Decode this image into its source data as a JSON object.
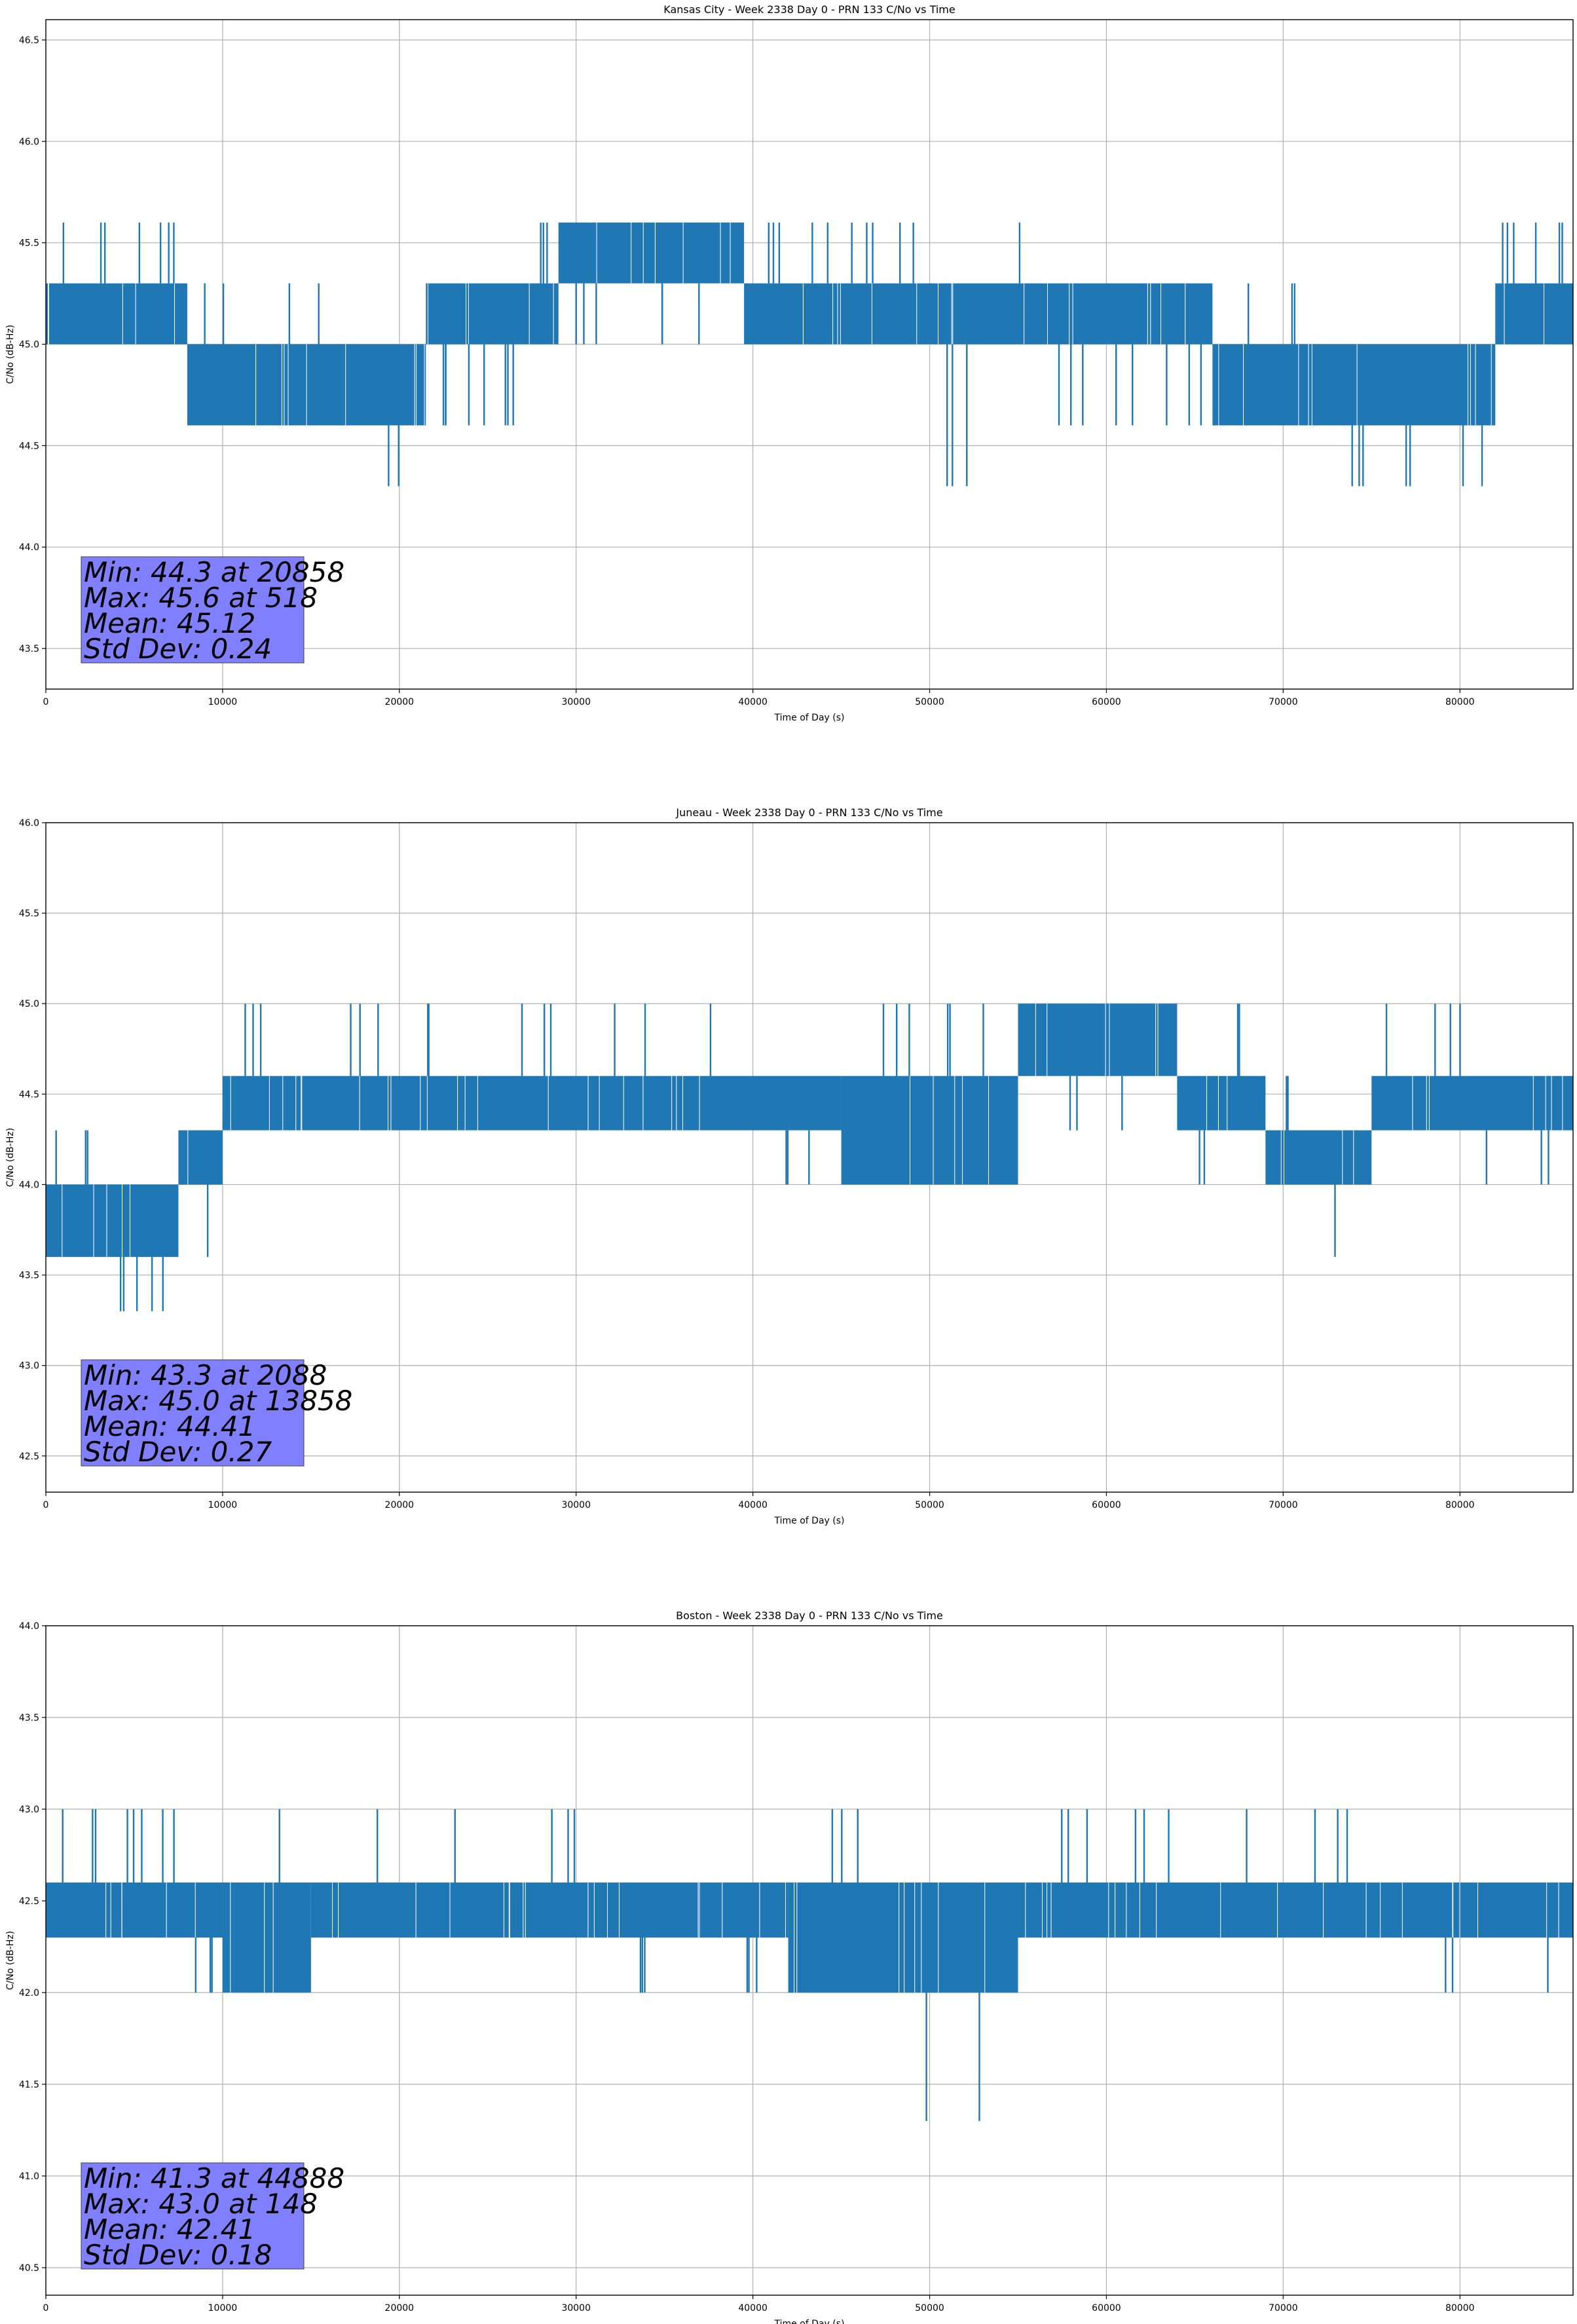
{
  "colors": {
    "series": "#1f77b4",
    "grid": "#b0b0b0",
    "stats_box": "#8080ff",
    "stats_text": "#000000",
    "axes": "#000000",
    "background": "#ffffff"
  },
  "chart_data": [
    {
      "type": "line",
      "title": "Kansas City - Week 2338 Day 0 - PRN 133 C/No vs Time",
      "xlabel": "Time of Day (s)",
      "ylabel": "C/No (dB-Hz)",
      "xlim": [
        0,
        86400
      ],
      "ylim": [
        43.3,
        46.6
      ],
      "xticks": [
        0,
        10000,
        20000,
        30000,
        40000,
        50000,
        60000,
        70000,
        80000
      ],
      "yticks": [
        43.5,
        44.0,
        44.5,
        45.0,
        45.5,
        46.0,
        46.5
      ],
      "ytick_labels": [
        "43.5",
        "44.0",
        "44.5",
        "45.0",
        "45.5",
        "46.0",
        "46.5"
      ],
      "grid": true,
      "stats_lines": [
        "Min: 44.3 at 20858",
        "Max: 45.6 at 518",
        "Mean: 45.12",
        "Std Dev: 0.24"
      ],
      "segments": [
        {
          "x": [
            0,
            8000
          ],
          "levels": [
            45.0,
            45.3
          ],
          "spikes": [
            45.6,
            45.6,
            45.6,
            45.6
          ]
        },
        {
          "x": [
            8000,
            21500
          ],
          "levels": [
            44.6,
            45.0
          ],
          "spikes": [
            45.3,
            45.3,
            45.3,
            44.3
          ]
        },
        {
          "x": [
            21500,
            29000
          ],
          "levels": [
            45.0,
            45.3
          ],
          "spikes": [
            44.6,
            44.6,
            44.6,
            45.6
          ]
        },
        {
          "x": [
            29000,
            39500
          ],
          "levels": [
            45.3,
            45.6
          ],
          "spikes": [
            45.0,
            45.0,
            45.0
          ]
        },
        {
          "x": [
            39500,
            53000
          ],
          "levels": [
            45.0,
            45.3
          ],
          "spikes": [
            45.6,
            45.6,
            45.6,
            45.6,
            44.3
          ]
        },
        {
          "x": [
            53000,
            66000
          ],
          "levels": [
            45.0,
            45.3
          ],
          "spikes": [
            45.6,
            44.6,
            44.6,
            44.6
          ]
        },
        {
          "x": [
            66000,
            82000
          ],
          "levels": [
            44.6,
            45.0
          ],
          "spikes": [
            45.3,
            45.3,
            44.3,
            44.3,
            44.3
          ]
        },
        {
          "x": [
            82000,
            86400
          ],
          "levels": [
            45.0,
            45.3
          ],
          "spikes": [
            45.6,
            45.6,
            45.6
          ]
        }
      ]
    },
    {
      "type": "line",
      "title": "Juneau - Week 2338 Day 0 - PRN 133 C/No vs Time",
      "xlabel": "Time of Day (s)",
      "ylabel": "C/No (dB-Hz)",
      "xlim": [
        0,
        86400
      ],
      "ylim": [
        42.3,
        46.0
      ],
      "xticks": [
        0,
        10000,
        20000,
        30000,
        40000,
        50000,
        60000,
        70000,
        80000
      ],
      "yticks": [
        42.5,
        43.0,
        43.5,
        44.0,
        44.5,
        45.0,
        45.5,
        46.0
      ],
      "ytick_labels": [
        "42.5",
        "43.0",
        "43.5",
        "44.0",
        "44.5",
        "45.0",
        "45.5",
        "46.0"
      ],
      "grid": true,
      "stats_lines": [
        "Min: 43.3 at 2088",
        "Max: 45.0 at 13858",
        "Mean: 44.41",
        "Std Dev: 0.27"
      ],
      "segments": [
        {
          "x": [
            0,
            7500
          ],
          "levels": [
            43.6,
            44.0
          ],
          "spikes": [
            44.3,
            44.3,
            43.3,
            43.3
          ]
        },
        {
          "x": [
            7500,
            10000
          ],
          "levels": [
            44.0,
            44.3
          ],
          "spikes": [
            43.6
          ]
        },
        {
          "x": [
            10000,
            45000
          ],
          "levels": [
            44.3,
            44.6
          ],
          "spikes": [
            45.0,
            45.0,
            45.0,
            45.0,
            45.0,
            45.0,
            44.0
          ]
        },
        {
          "x": [
            45000,
            55000
          ],
          "levels": [
            44.0,
            44.6
          ],
          "spikes": [
            45.0,
            45.0
          ]
        },
        {
          "x": [
            55000,
            64000
          ],
          "levels": [
            44.6,
            45.0
          ],
          "spikes": [
            44.3,
            44.3
          ]
        },
        {
          "x": [
            64000,
            69000
          ],
          "levels": [
            44.3,
            44.6
          ],
          "spikes": [
            44.0,
            45.0
          ]
        },
        {
          "x": [
            69000,
            75000
          ],
          "levels": [
            44.0,
            44.3
          ],
          "spikes": [
            44.6,
            43.6
          ]
        },
        {
          "x": [
            75000,
            86400
          ],
          "levels": [
            44.3,
            44.6
          ],
          "spikes": [
            45.0,
            45.0,
            44.0,
            44.0
          ]
        }
      ]
    },
    {
      "type": "line",
      "title": "Boston - Week 2338 Day 0 - PRN 133 C/No vs Time",
      "xlabel": "Time of Day (s)",
      "ylabel": "C/No (dB-Hz)",
      "xlim": [
        0,
        86400
      ],
      "ylim": [
        40.35,
        44.0
      ],
      "xticks": [
        0,
        10000,
        20000,
        30000,
        40000,
        50000,
        60000,
        70000,
        80000
      ],
      "yticks": [
        40.5,
        41.0,
        41.5,
        42.0,
        42.5,
        43.0,
        43.5,
        44.0
      ],
      "ytick_labels": [
        "40.5",
        "41.0",
        "41.5",
        "42.0",
        "42.5",
        "43.0",
        "43.5",
        "44.0"
      ],
      "grid": true,
      "stats_lines": [
        "Min: 41.3 at 44888",
        "Max: 43.0 at 148",
        "Mean: 42.41",
        "Std Dev: 0.18"
      ],
      "segments": [
        {
          "x": [
            0,
            10000
          ],
          "levels": [
            42.3,
            42.6
          ],
          "spikes": [
            43.0,
            43.0,
            43.0,
            43.0,
            42.0
          ]
        },
        {
          "x": [
            10000,
            15000
          ],
          "levels": [
            42.0,
            42.6
          ],
          "spikes": [
            43.0
          ]
        },
        {
          "x": [
            15000,
            42000
          ],
          "levels": [
            42.3,
            42.6
          ],
          "spikes": [
            43.0,
            43.0,
            43.0,
            42.0,
            42.0
          ]
        },
        {
          "x": [
            42000,
            55000
          ],
          "levels": [
            42.0,
            42.6
          ],
          "spikes": [
            43.0,
            41.3
          ]
        },
        {
          "x": [
            55000,
            86400
          ],
          "levels": [
            42.3,
            42.6
          ],
          "spikes": [
            43.0,
            43.0,
            43.0,
            43.0,
            42.0,
            42.0
          ]
        }
      ]
    }
  ]
}
